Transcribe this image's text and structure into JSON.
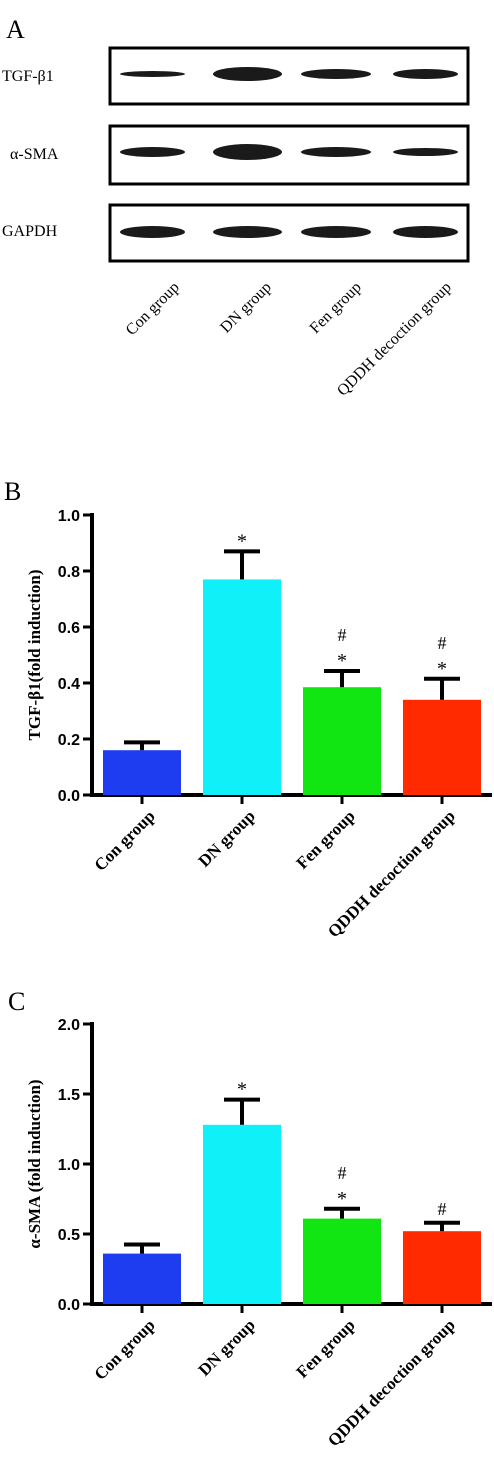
{
  "panel_a": {
    "label": "A",
    "rows": [
      "TGF-β1",
      "α-SMA",
      "GAPDH"
    ],
    "lanes": [
      "Con group",
      "DN group",
      "Fen group",
      "QDDH decoction group"
    ]
  },
  "chart_data": [
    {
      "panel_label": "B",
      "type": "bar",
      "categories": [
        "Con group",
        "DN group",
        "Fen group",
        "QDDH decoction group"
      ],
      "values": [
        0.16,
        0.77,
        0.385,
        0.34
      ],
      "errors": [
        0.028,
        0.1,
        0.058,
        0.075
      ],
      "colors": [
        "#1e3cf0",
        "#10f0f8",
        "#12e612",
        "#ff2a00"
      ],
      "annotations": [
        [],
        [
          "*"
        ],
        [
          "#",
          "*"
        ],
        [
          "#",
          "*"
        ]
      ],
      "ylabel": "TGF-β1(fold induction)",
      "ylim": [
        0,
        1.0
      ],
      "yticks": [
        "0.0",
        "0.2",
        "0.4",
        "0.6",
        "0.8",
        "1.0"
      ],
      "grid": false
    },
    {
      "panel_label": "C",
      "type": "bar",
      "categories": [
        "Con group",
        "DN group",
        "Fen group",
        "QDDH decoction group"
      ],
      "values": [
        0.36,
        1.28,
        0.61,
        0.52
      ],
      "errors": [
        0.065,
        0.18,
        0.07,
        0.06
      ],
      "colors": [
        "#1e3cf0",
        "#10f0f8",
        "#12e612",
        "#ff2a00"
      ],
      "annotations": [
        [],
        [
          "*"
        ],
        [
          "#",
          "*"
        ],
        [
          "#"
        ]
      ],
      "ylabel": "α-SMA (fold induction)",
      "ylim": [
        0,
        2.0
      ],
      "yticks": [
        "0.0",
        "0.5",
        "1.0",
        "1.5",
        "2.0"
      ],
      "grid": false
    }
  ]
}
